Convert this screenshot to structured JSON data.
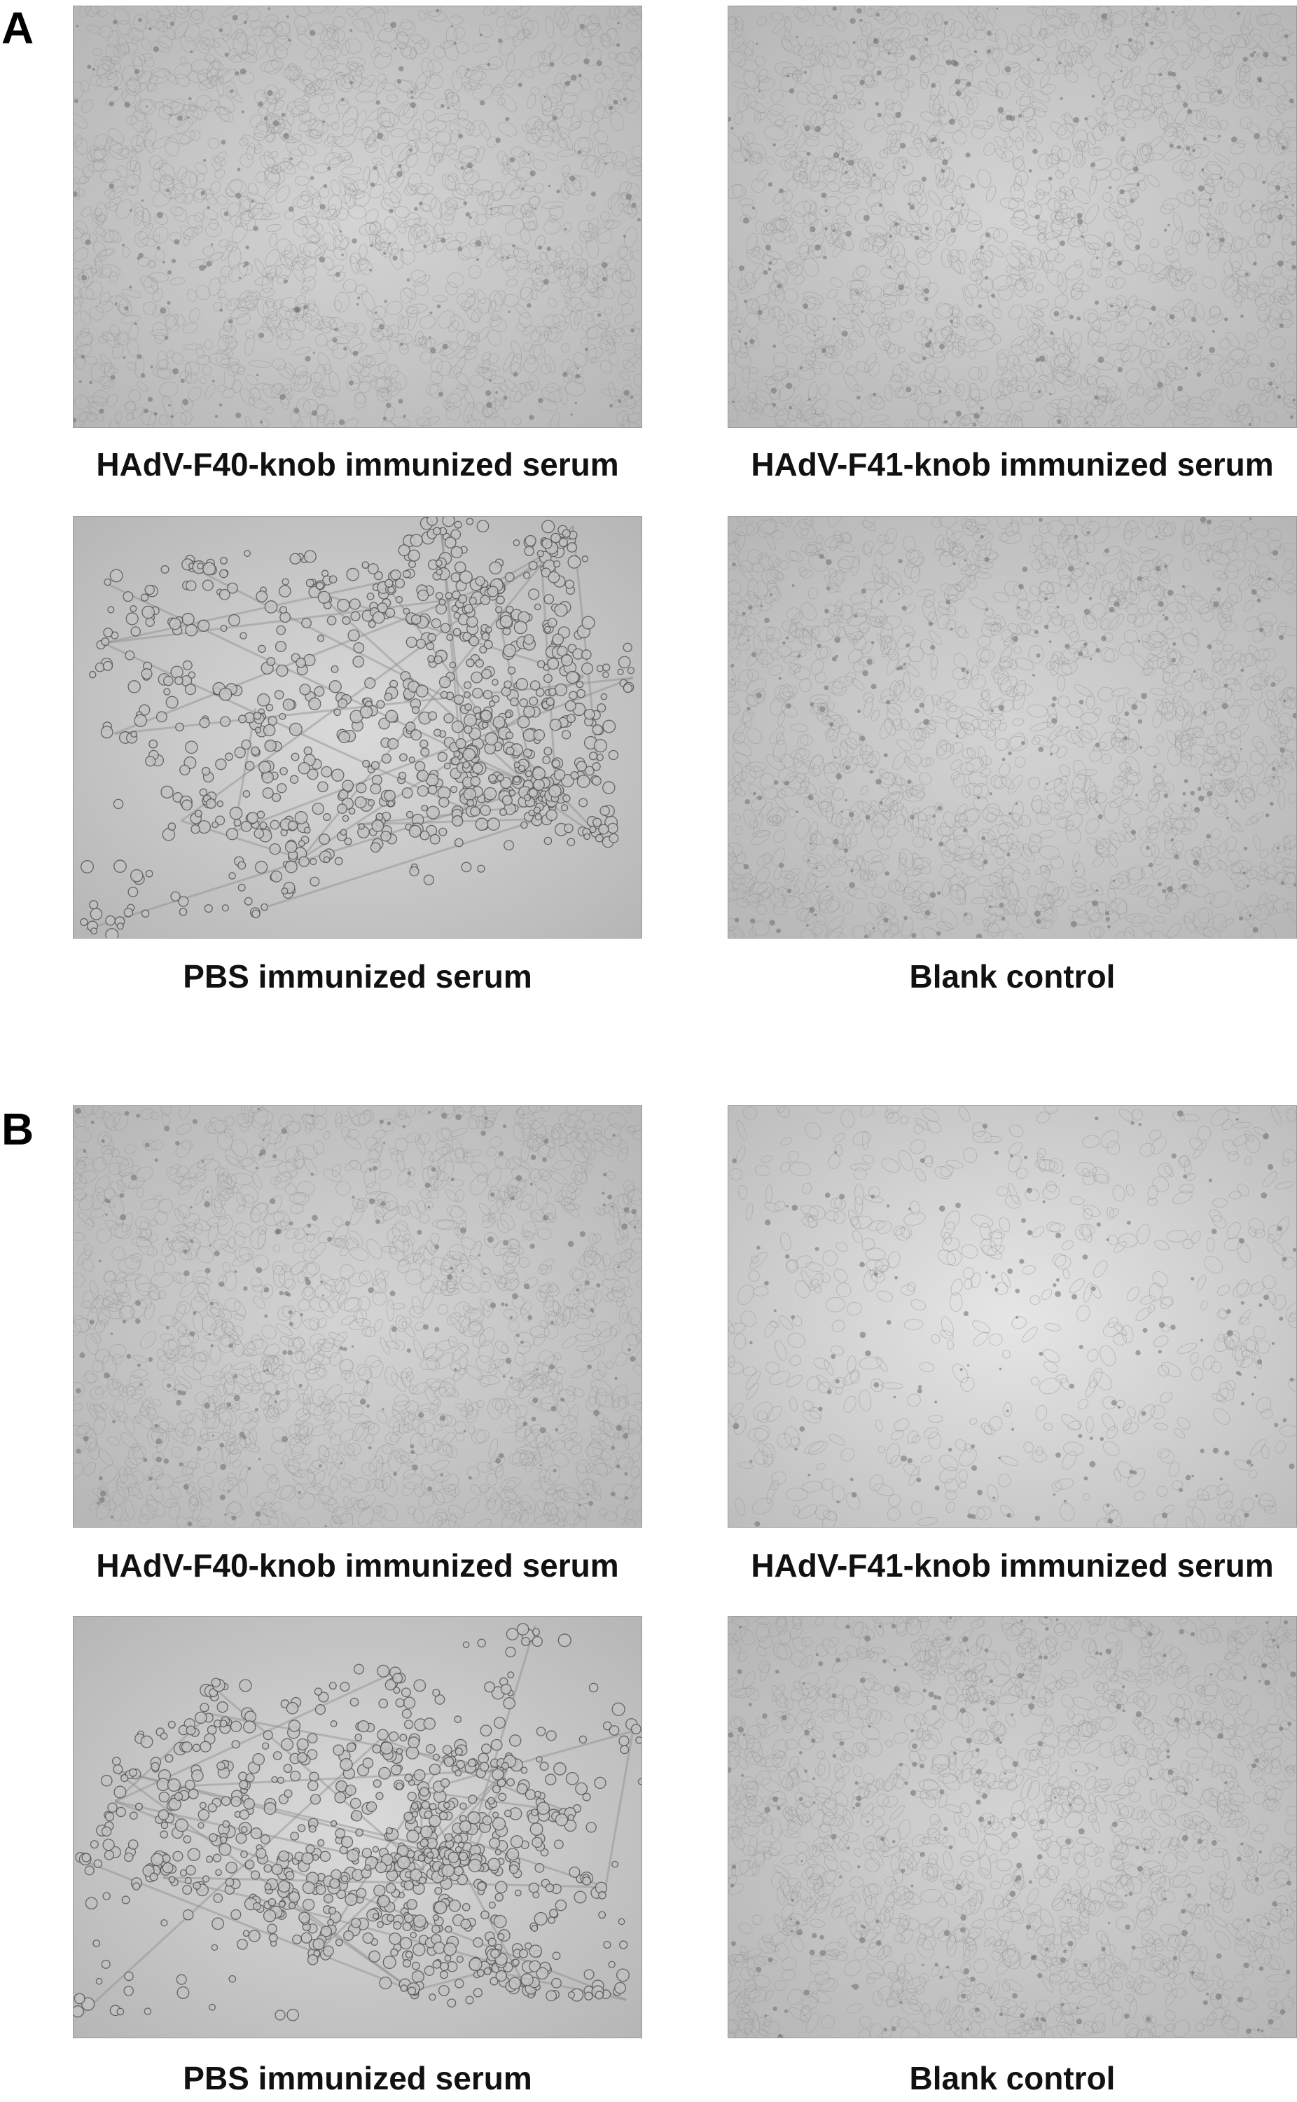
{
  "panels": [
    {
      "letter": "A",
      "images": [
        {
          "caption": "HAdV-F40-knob immunized serum",
          "pattern": "confluent"
        },
        {
          "caption": "HAdV-F41-knob immunized serum",
          "pattern": "confluent"
        },
        {
          "caption": "PBS immunized serum",
          "pattern": "clustered"
        },
        {
          "caption": "Blank control",
          "pattern": "confluent"
        }
      ]
    },
    {
      "letter": "B",
      "images": [
        {
          "caption": "HAdV-F40-knob immunized serum",
          "pattern": "confluent"
        },
        {
          "caption": "HAdV-F41-knob immunized serum",
          "pattern": "confluent-bright"
        },
        {
          "caption": "PBS immunized serum",
          "pattern": "clustered"
        },
        {
          "caption": "Blank control",
          "pattern": "confluent"
        }
      ]
    }
  ]
}
